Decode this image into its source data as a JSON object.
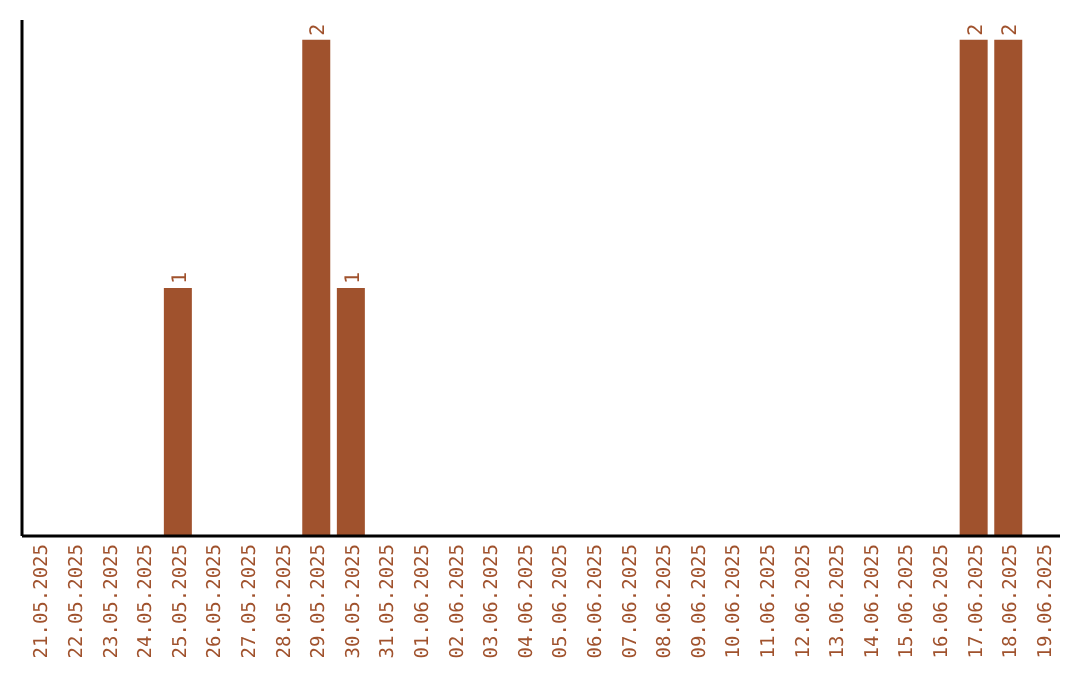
{
  "chart_data": {
    "type": "bar",
    "categories": [
      "21.05.2025",
      "22.05.2025",
      "23.05.2025",
      "24.05.2025",
      "25.05.2025",
      "26.05.2025",
      "27.05.2025",
      "28.05.2025",
      "29.05.2025",
      "30.05.2025",
      "31.05.2025",
      "01.06.2025",
      "02.06.2025",
      "03.06.2025",
      "04.06.2025",
      "05.06.2025",
      "06.06.2025",
      "07.06.2025",
      "08.06.2025",
      "09.06.2025",
      "10.06.2025",
      "11.06.2025",
      "12.06.2025",
      "13.06.2025",
      "14.06.2025",
      "15.06.2025",
      "16.06.2025",
      "17.06.2025",
      "18.06.2025",
      "19.06.2025"
    ],
    "values": [
      null,
      null,
      null,
      null,
      1,
      null,
      null,
      null,
      2,
      1,
      null,
      null,
      null,
      null,
      null,
      null,
      null,
      null,
      null,
      null,
      null,
      null,
      null,
      null,
      null,
      null,
      null,
      2,
      2,
      null
    ],
    "color": "#a0522d",
    "ylim": [
      0,
      2.08
    ],
    "data_labels": true,
    "tick_labels": "x",
    "grid": false
  }
}
